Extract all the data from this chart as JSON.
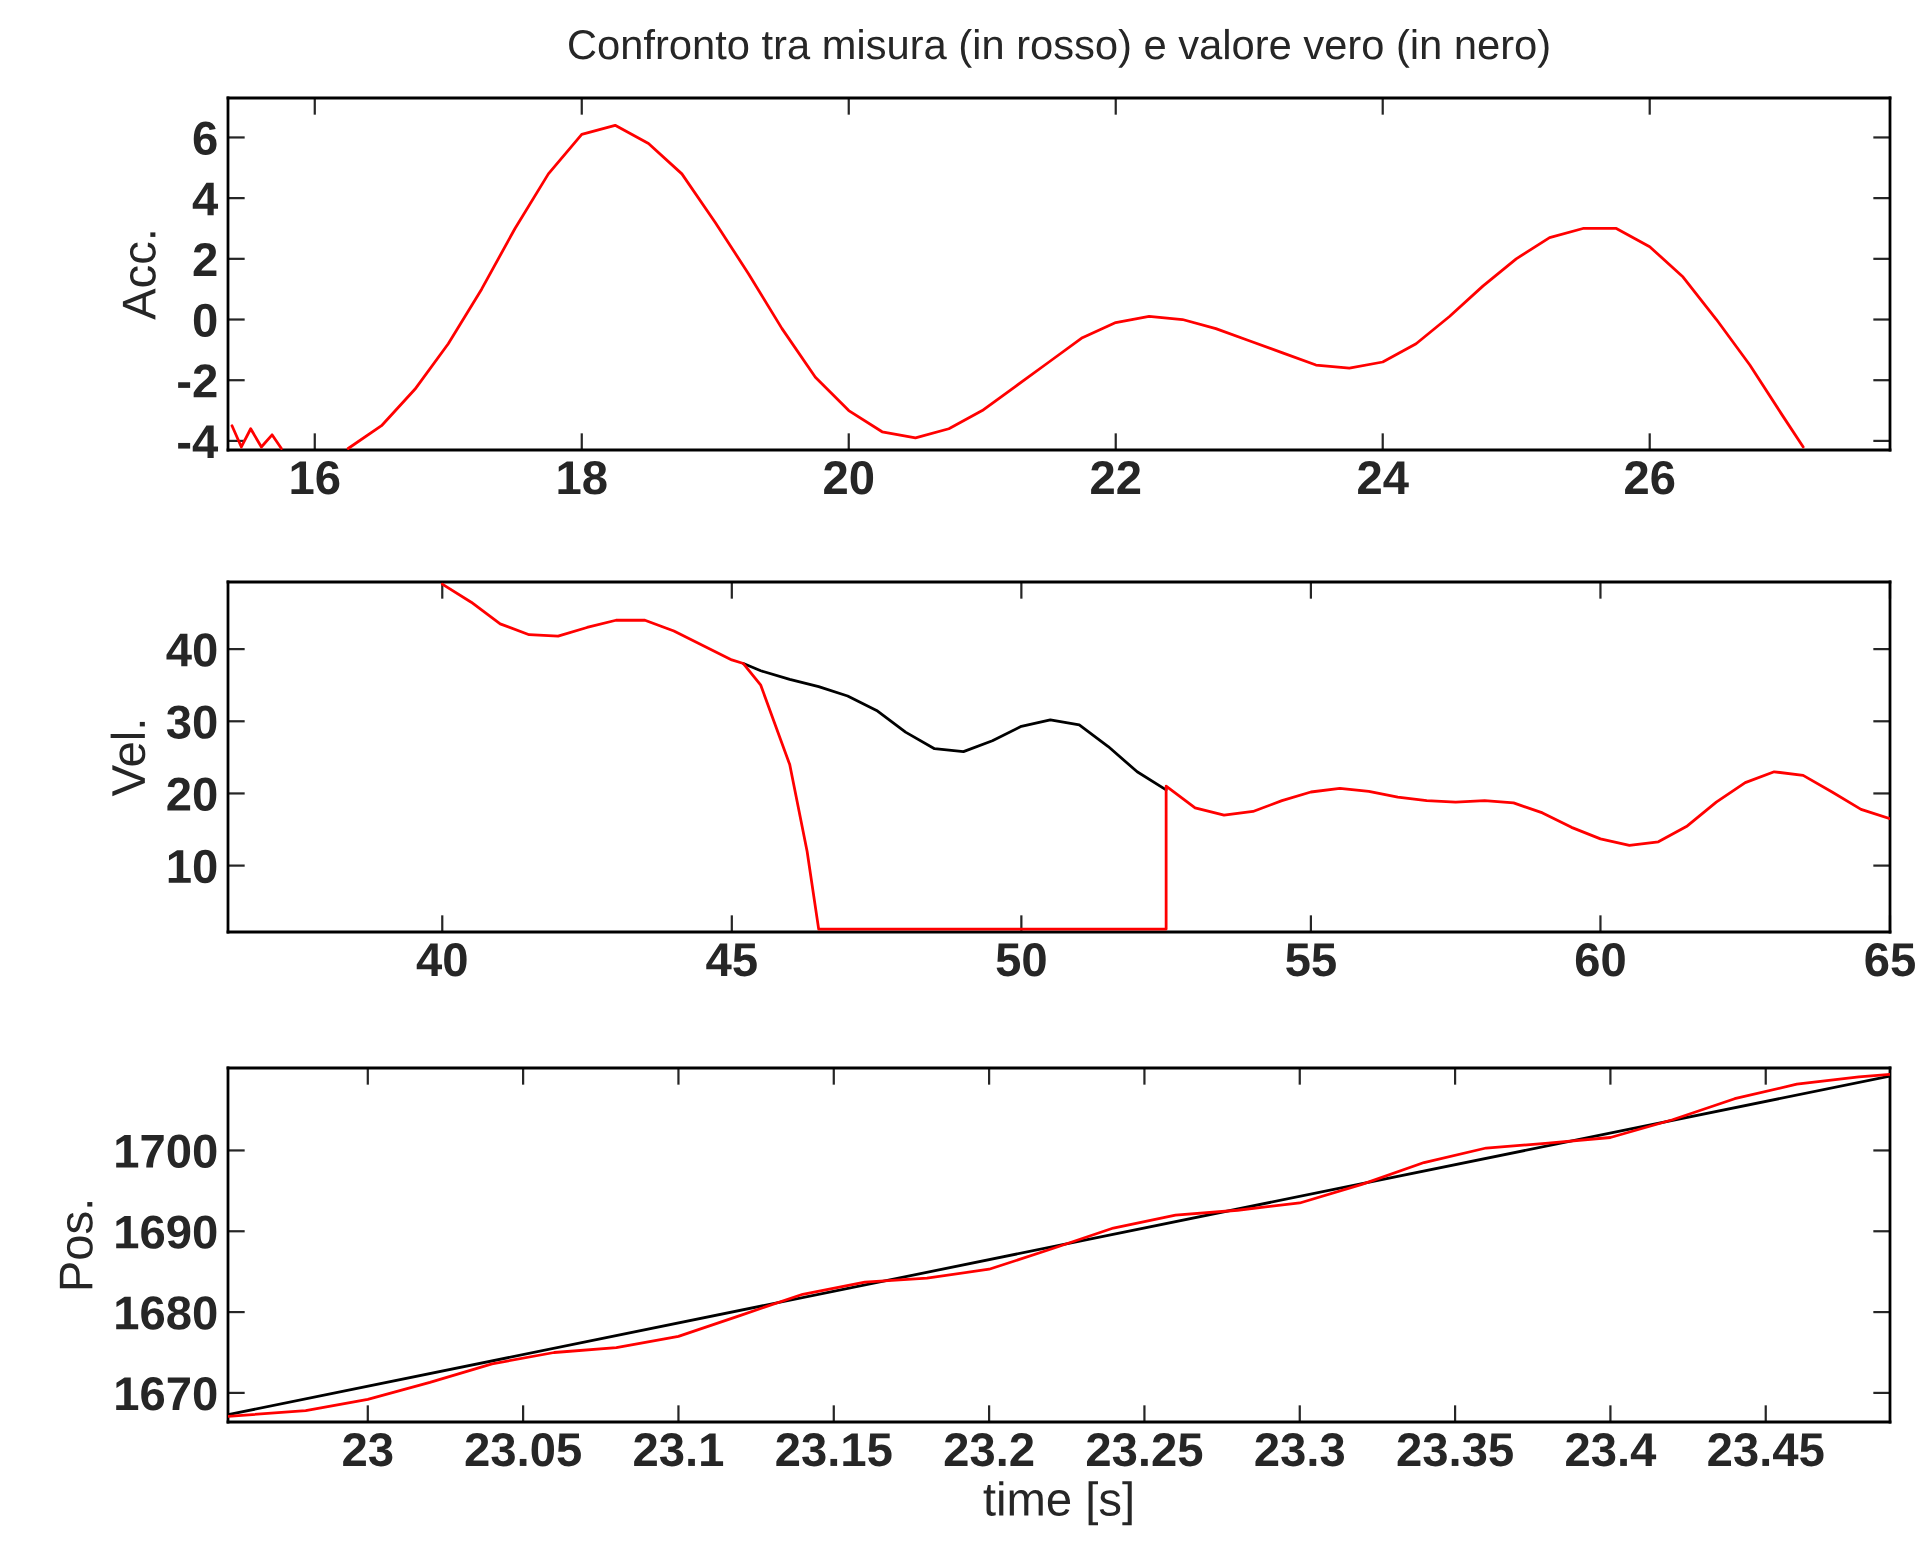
{
  "chart_data": [
    {
      "type": "line",
      "title": "Confronto tra misura (in rosso) e valore vero (in nero)",
      "ylabel": "Acc.",
      "xlim": [
        15.35,
        27.8
      ],
      "ylim": [
        -4.3,
        7.3
      ],
      "xticks": [
        16,
        18,
        20,
        22,
        24,
        26
      ],
      "yticks": [
        -4,
        -2,
        0,
        2,
        4,
        6
      ],
      "grid": false,
      "series": [
        {
          "color": "#ff0000",
          "x": [
            15.38,
            15.45,
            15.52,
            15.6,
            15.68,
            15.75,
            15.9,
            16.25,
            16.5,
            16.75,
            17,
            17.25,
            17.5,
            17.75,
            18,
            18.25,
            18.5,
            18.75,
            19,
            19.25,
            19.5,
            19.75,
            20,
            20.25,
            20.5,
            20.75,
            21,
            21.25,
            21.5,
            21.75,
            22,
            22.25,
            22.5,
            22.75,
            23,
            23.25,
            23.5,
            23.75,
            24,
            24.25,
            24.5,
            24.75,
            25,
            25.25,
            25.5,
            25.75,
            26,
            26.25,
            26.5,
            26.75,
            27,
            27.15
          ],
          "values": [
            -3.5,
            -4.2,
            -3.6,
            -4.2,
            -3.8,
            -4.25,
            null,
            -4.25,
            -3.5,
            -2.3,
            -0.8,
            1.0,
            3.0,
            4.8,
            6.1,
            6.4,
            5.8,
            4.8,
            3.2,
            1.5,
            -0.3,
            -1.9,
            -3.0,
            -3.7,
            -3.9,
            -3.6,
            -3.0,
            -2.2,
            -1.4,
            -0.6,
            -0.1,
            0.1,
            0.0,
            -0.3,
            -0.7,
            -1.1,
            -1.5,
            -1.6,
            -1.4,
            -0.8,
            0.1,
            1.1,
            2.0,
            2.7,
            3.0,
            3.0,
            2.4,
            1.4,
            0.0,
            -1.5,
            -3.2,
            -4.2
          ]
        }
      ]
    },
    {
      "type": "line",
      "ylabel": "Vel.",
      "xlim": [
        36.3,
        65
      ],
      "ylim": [
        0.8,
        49.3
      ],
      "xticks": [
        40,
        45,
        50,
        55,
        60,
        65
      ],
      "yticks": [
        10,
        20,
        30,
        40
      ],
      "grid": false,
      "series": [
        {
          "color": "#000000",
          "x": [
            45.2,
            45.5,
            46,
            46.5,
            47,
            47.5,
            48,
            48.5,
            49,
            49.5,
            50,
            50.5,
            51,
            51.5,
            52,
            52.5
          ],
          "values": [
            38,
            37,
            35.8,
            34.8,
            33.5,
            31.5,
            28.5,
            26.2,
            25.8,
            27.3,
            29.3,
            30.2,
            29.5,
            26.5,
            23,
            20.5
          ]
        },
        {
          "color": "#ff0000",
          "x": [
            40,
            40.5,
            41,
            41.5,
            42,
            42.5,
            43,
            43.5,
            44,
            44.5,
            45,
            45.2,
            45.5,
            46,
            46.3,
            46.5,
            52.5,
            52.5,
            53,
            53.5,
            54,
            54.5,
            55,
            55.5,
            56,
            56.5,
            57,
            57.5,
            58,
            58.5,
            59,
            59.5,
            60,
            60.5,
            61,
            61.5,
            62,
            62.5,
            63,
            63.5,
            64,
            64.5,
            65
          ],
          "values": [
            49,
            46.5,
            43.5,
            42,
            41.8,
            43,
            44,
            44,
            42.5,
            40.5,
            38.5,
            38,
            35,
            24,
            12,
            1.2,
            1.2,
            21,
            18,
            17,
            17.5,
            19,
            20.2,
            20.7,
            20.3,
            19.5,
            19,
            18.8,
            19,
            18.7,
            17.3,
            15.3,
            13.7,
            12.8,
            13.3,
            15.5,
            18.8,
            21.5,
            23,
            22.5,
            20.2,
            17.8,
            16.5
          ]
        }
      ]
    },
    {
      "type": "line",
      "ylabel": "Pos.",
      "xlabel": "time [s]",
      "xlim": [
        22.955,
        23.49
      ],
      "ylim": [
        1666.4,
        1710.2
      ],
      "xticks": [
        23,
        23.05,
        23.1,
        23.15,
        23.2,
        23.25,
        23.3,
        23.35,
        23.4,
        23.45
      ],
      "yticks": [
        1670,
        1680,
        1690,
        1700
      ],
      "grid": false,
      "series": [
        {
          "color": "#000000",
          "x": [
            22.955,
            23.49
          ],
          "values": [
            1667.3,
            1709.2
          ]
        },
        {
          "color": "#ff0000",
          "x": [
            22.955,
            22.98,
            23.0,
            23.02,
            23.04,
            23.06,
            23.08,
            23.1,
            23.12,
            23.14,
            23.16,
            23.18,
            23.2,
            23.22,
            23.24,
            23.26,
            23.28,
            23.3,
            23.32,
            23.34,
            23.36,
            23.38,
            23.4,
            23.42,
            23.44,
            23.46,
            23.48,
            23.49
          ],
          "values": [
            1667.1,
            1667.8,
            1669.2,
            1671.3,
            1673.6,
            1675,
            1675.6,
            1677,
            1679.6,
            1682.2,
            1683.7,
            1684.2,
            1685.3,
            1687.8,
            1690.4,
            1692,
            1692.6,
            1693.5,
            1695.8,
            1698.5,
            1700.3,
            1700.9,
            1701.6,
            1703.8,
            1706.4,
            1708.2,
            1709.1,
            1709.4
          ]
        }
      ]
    }
  ]
}
